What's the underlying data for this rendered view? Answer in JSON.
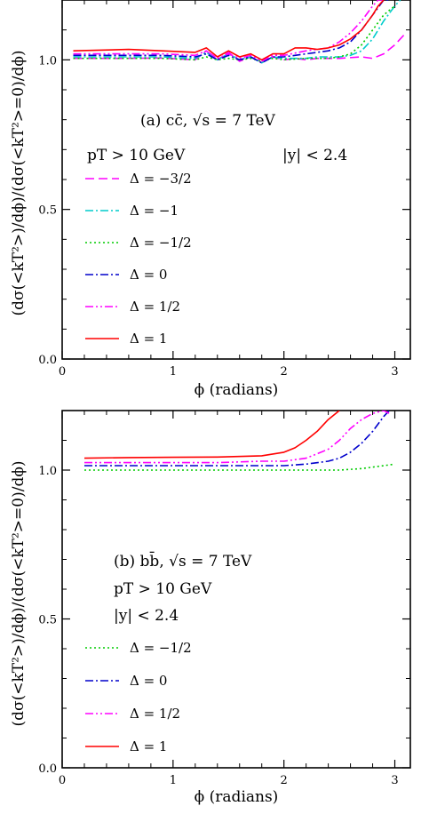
{
  "chart_data": [
    {
      "type": "line",
      "panel_label": "(a)",
      "annotations": {
        "title": "(a) cc̄, √s = 7 TeV",
        "cut_pt": "pT > 10 GeV",
        "cut_y": "|y| < 2.4"
      },
      "xlabel": "ϕ (radians)",
      "ylabel": "(dσ(<kT²>)/dϕ)/(dσ(<kT²>=0)/dϕ)",
      "xlim": [
        0,
        3.14
      ],
      "ylim": [
        0.0,
        1.2
      ],
      "x_ticks": [
        0,
        1,
        2,
        3
      ],
      "x_tick_labels": [
        "0",
        "1",
        "2",
        "3"
      ],
      "y_ticks": [
        0.0,
        0.5,
        1.0
      ],
      "y_tick_labels": [
        "0.0",
        "0.5",
        "1.0"
      ],
      "grid": false,
      "legend_placement": "left, below annotations",
      "series": [
        {
          "name": "Δ = −3/2",
          "color": "#ff00ff",
          "dash": "dashed",
          "x": [
            0.1,
            0.5,
            0.9,
            1.2,
            1.3,
            1.4,
            1.5,
            1.6,
            1.7,
            1.8,
            1.9,
            2.0,
            2.1,
            2.2,
            2.3,
            2.5,
            2.7,
            2.8,
            2.9,
            3.0,
            3.1
          ],
          "y": [
            1.005,
            1.005,
            1.006,
            1.0,
            1.03,
            1.0,
            1.025,
            0.995,
            1.01,
            0.99,
            1.01,
            1.0,
            1.005,
            1.0,
            1.005,
            1.005,
            1.01,
            1.005,
            1.02,
            1.05,
            1.09
          ]
        },
        {
          "name": "Δ = −1",
          "color": "#00cccc",
          "dash": "dashdot",
          "x": [
            0.1,
            0.5,
            0.9,
            1.2,
            1.3,
            1.4,
            1.5,
            1.6,
            1.7,
            1.8,
            1.9,
            2.0,
            2.1,
            2.2,
            2.3,
            2.5,
            2.6,
            2.7,
            2.8,
            2.9,
            3.0,
            3.05
          ],
          "y": [
            1.01,
            1.01,
            1.01,
            1.005,
            1.025,
            1.0,
            1.02,
            1.0,
            1.01,
            0.99,
            1.01,
            1.005,
            1.005,
            1.005,
            1.01,
            1.01,
            1.015,
            1.03,
            1.07,
            1.13,
            1.18,
            1.2
          ]
        },
        {
          "name": "Δ = −1/2",
          "color": "#00cc00",
          "dash": "dotted",
          "x": [
            0.1,
            0.5,
            0.9,
            1.2,
            1.3,
            1.4,
            1.5,
            1.6,
            1.7,
            1.8,
            1.9,
            2.0,
            2.2,
            2.4,
            2.5,
            2.6,
            2.7,
            2.8,
            2.9,
            3.0
          ],
          "y": [
            1.005,
            1.005,
            1.005,
            1.0,
            1.01,
            1.0,
            1.005,
            1.0,
            1.005,
            0.995,
            1.005,
            1.0,
            1.005,
            1.005,
            1.01,
            1.02,
            1.05,
            1.1,
            1.15,
            1.18
          ]
        },
        {
          "name": "Δ = 0",
          "color": "#0000cc",
          "dash": "dashdot",
          "x": [
            0.1,
            0.5,
            0.9,
            1.2,
            1.3,
            1.4,
            1.5,
            1.6,
            1.7,
            1.8,
            1.9,
            2.0,
            2.2,
            2.4,
            2.5,
            2.6,
            2.7,
            2.8,
            2.9,
            2.95
          ],
          "y": [
            1.015,
            1.015,
            1.015,
            1.01,
            1.02,
            1.0,
            1.015,
            1.0,
            1.01,
            0.99,
            1.01,
            1.01,
            1.02,
            1.03,
            1.04,
            1.06,
            1.1,
            1.15,
            1.2,
            1.2
          ]
        },
        {
          "name": "Δ = 1/2",
          "color": "#ff00ff",
          "dash": "dashdotdot",
          "x": [
            0.1,
            0.5,
            0.9,
            1.2,
            1.3,
            1.4,
            1.5,
            1.6,
            1.7,
            1.8,
            1.9,
            2.0,
            2.2,
            2.4,
            2.5,
            2.6,
            2.7,
            2.8,
            2.85,
            2.9
          ],
          "y": [
            1.02,
            1.02,
            1.02,
            1.015,
            1.03,
            1.005,
            1.02,
            1.005,
            1.015,
            0.995,
            1.015,
            1.015,
            1.03,
            1.04,
            1.06,
            1.09,
            1.13,
            1.18,
            1.2,
            1.2
          ]
        },
        {
          "name": "Δ = 1",
          "color": "#ff0000",
          "dash": "solid",
          "x": [
            0.1,
            0.3,
            0.6,
            0.9,
            1.2,
            1.3,
            1.4,
            1.5,
            1.6,
            1.7,
            1.8,
            1.9,
            2.0,
            2.1,
            2.2,
            2.3,
            2.4,
            2.5,
            2.6,
            2.7,
            2.8,
            2.85,
            2.9
          ],
          "y": [
            1.03,
            1.032,
            1.035,
            1.03,
            1.025,
            1.04,
            1.01,
            1.03,
            1.01,
            1.02,
            1.0,
            1.02,
            1.02,
            1.04,
            1.04,
            1.035,
            1.04,
            1.05,
            1.07,
            1.1,
            1.15,
            1.18,
            1.2
          ]
        }
      ]
    },
    {
      "type": "line",
      "panel_label": "(b)",
      "annotations": {
        "title": "(b) bb̄, √s = 7 TeV",
        "cut_pt": "pT > 10 GeV",
        "cut_y": "|y| < 2.4"
      },
      "xlabel": "ϕ (radians)",
      "ylabel": "(dσ(<kT²>)/dϕ)/(dσ(<kT²>=0)/dϕ)",
      "xlim": [
        0,
        3.14
      ],
      "ylim": [
        0.0,
        1.2
      ],
      "x_ticks": [
        0,
        1,
        2,
        3
      ],
      "x_tick_labels": [
        "0",
        "1",
        "2",
        "3"
      ],
      "y_ticks": [
        0.0,
        0.5,
        1.0
      ],
      "y_tick_labels": [
        "0.0",
        "0.5",
        "1.0"
      ],
      "grid": false,
      "legend_placement": "left, below annotations",
      "series": [
        {
          "name": "Δ = −1/2",
          "color": "#00cc00",
          "dash": "dotted",
          "x": [
            0.2,
            0.6,
            1.0,
            1.4,
            1.8,
            2.2,
            2.5,
            2.7,
            2.9,
            3.0
          ],
          "y": [
            1.0,
            1.0,
            1.0,
            1.0,
            1.0,
            1.0,
            1.0,
            1.005,
            1.015,
            1.02
          ]
        },
        {
          "name": "Δ = 0",
          "color": "#0000cc",
          "dash": "dashdot",
          "x": [
            0.2,
            0.6,
            1.0,
            1.4,
            1.8,
            2.0,
            2.2,
            2.4,
            2.5,
            2.6,
            2.7,
            2.8,
            2.9,
            2.95
          ],
          "y": [
            1.015,
            1.015,
            1.015,
            1.015,
            1.015,
            1.015,
            1.02,
            1.03,
            1.04,
            1.06,
            1.09,
            1.13,
            1.18,
            1.2
          ]
        },
        {
          "name": "Δ = 1/2",
          "color": "#ff00ff",
          "dash": "dashdotdot",
          "x": [
            0.2,
            0.6,
            1.0,
            1.4,
            1.8,
            2.0,
            2.2,
            2.3,
            2.4,
            2.5,
            2.6,
            2.7,
            2.8,
            2.9,
            2.95
          ],
          "y": [
            1.025,
            1.025,
            1.025,
            1.025,
            1.03,
            1.03,
            1.04,
            1.055,
            1.07,
            1.1,
            1.14,
            1.17,
            1.19,
            1.2,
            1.19
          ]
        },
        {
          "name": "Δ = 1",
          "color": "#ff0000",
          "dash": "solid",
          "x": [
            0.2,
            0.6,
            1.0,
            1.4,
            1.8,
            2.0,
            2.1,
            2.2,
            2.3,
            2.4,
            2.5
          ],
          "y": [
            1.04,
            1.042,
            1.043,
            1.044,
            1.048,
            1.06,
            1.075,
            1.1,
            1.13,
            1.17,
            1.2
          ]
        }
      ]
    }
  ]
}
